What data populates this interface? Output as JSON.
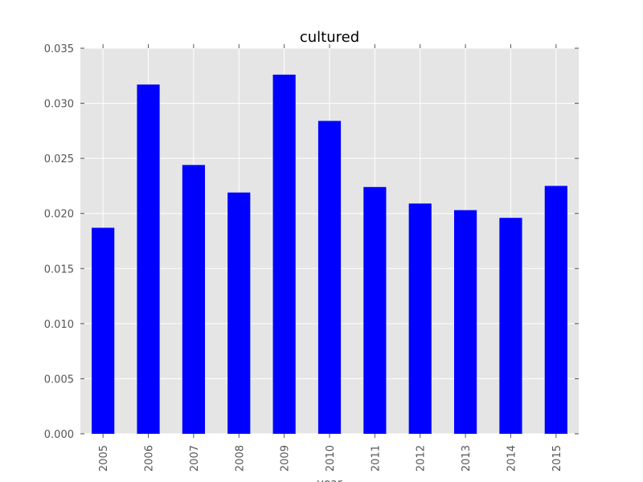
{
  "chart_data": {
    "type": "bar",
    "title": "cultured",
    "xlabel": "year",
    "ylabel": "",
    "categories": [
      "2005",
      "2006",
      "2007",
      "2008",
      "2009",
      "2010",
      "2011",
      "2012",
      "2013",
      "2014",
      "2015"
    ],
    "values": [
      0.0187,
      0.0317,
      0.0244,
      0.0219,
      0.0326,
      0.0284,
      0.0224,
      0.0209,
      0.0203,
      0.0196,
      0.0225
    ],
    "ylim": [
      0,
      0.035
    ],
    "yticks": [
      "0.000",
      "0.005",
      "0.010",
      "0.015",
      "0.020",
      "0.025",
      "0.030",
      "0.035"
    ],
    "grid": true,
    "legend": "none",
    "colors": {
      "bar": "#0000ff",
      "plot_background": "#e5e5e5",
      "grid": "#ffffff"
    }
  }
}
